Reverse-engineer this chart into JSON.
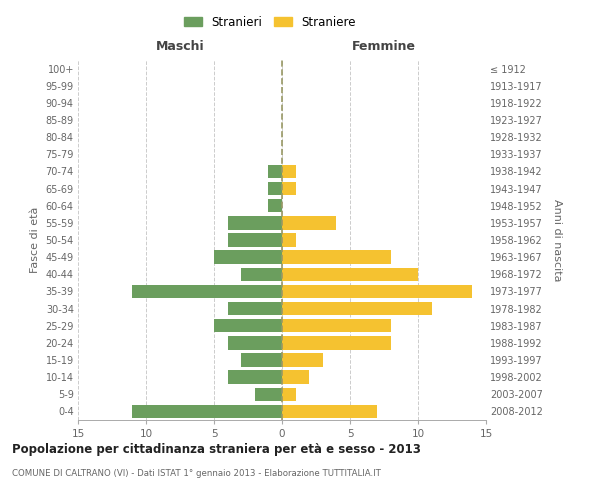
{
  "age_groups": [
    "0-4",
    "5-9",
    "10-14",
    "15-19",
    "20-24",
    "25-29",
    "30-34",
    "35-39",
    "40-44",
    "45-49",
    "50-54",
    "55-59",
    "60-64",
    "65-69",
    "70-74",
    "75-79",
    "80-84",
    "85-89",
    "90-94",
    "95-99",
    "100+"
  ],
  "birth_years": [
    "2008-2012",
    "2003-2007",
    "1998-2002",
    "1993-1997",
    "1988-1992",
    "1983-1987",
    "1978-1982",
    "1973-1977",
    "1968-1972",
    "1963-1967",
    "1958-1962",
    "1953-1957",
    "1948-1952",
    "1943-1947",
    "1938-1942",
    "1933-1937",
    "1928-1932",
    "1923-1927",
    "1918-1922",
    "1913-1917",
    "≤ 1912"
  ],
  "males": [
    11,
    2,
    4,
    3,
    4,
    5,
    4,
    11,
    3,
    5,
    4,
    4,
    1,
    1,
    1,
    0,
    0,
    0,
    0,
    0,
    0
  ],
  "females": [
    7,
    1,
    2,
    3,
    8,
    8,
    11,
    14,
    10,
    8,
    1,
    4,
    0,
    1,
    1,
    0,
    0,
    0,
    0,
    0,
    0
  ],
  "male_color": "#6B9E5E",
  "female_color": "#F5C230",
  "male_label": "Stranieri",
  "female_label": "Straniere",
  "title": "Popolazione per cittadinanza straniera per età e sesso - 2013",
  "subtitle": "COMUNE DI CALTRANO (VI) - Dati ISTAT 1° gennaio 2013 - Elaborazione TUTTITALIA.IT",
  "left_header": "Maschi",
  "right_header": "Femmine",
  "left_yaxis_label": "Fasce di età",
  "right_yaxis_label": "Anni di nascita",
  "xlim": 15,
  "background_color": "#ffffff",
  "grid_color": "#cccccc"
}
